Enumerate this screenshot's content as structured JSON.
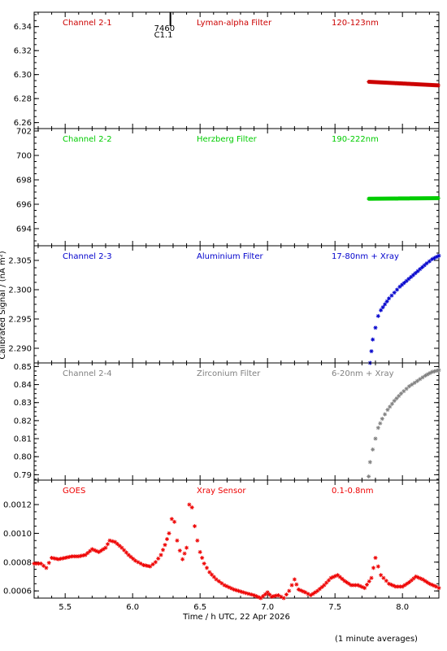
{
  "xaxis": {
    "label": "Time / h UTC, 22 Apr 2026",
    "ticks": [
      5.5,
      6.0,
      6.5,
      7.0,
      7.5,
      8.0
    ],
    "range": [
      5.27,
      8.27
    ]
  },
  "ylabel": "Calibrated Signal / (nA m²)",
  "note": "(1 minute averages)",
  "marker": {
    "time": 6.28,
    "labels": [
      "7460",
      "C1.1"
    ]
  },
  "chart_data": [
    {
      "type": "scatter",
      "channel": "Channel 2-1",
      "filter": "Lyman-alpha Filter",
      "band": "120-123nm",
      "color": "#cc0000",
      "ylim": [
        6.255,
        6.352
      ],
      "yticks": [
        6.26,
        6.28,
        6.3,
        6.32,
        6.34
      ],
      "series": [
        {
          "x_range": [
            7.75,
            8.27
          ],
          "y_start": 6.294,
          "y_end": 6.291
        }
      ]
    },
    {
      "type": "scatter",
      "channel": "Channel 2-2",
      "filter": "Herzberg Filter",
      "band": "190-222nm",
      "color": "#00cc00",
      "ylim": [
        692.6,
        702.2
      ],
      "yticks": [
        694,
        696,
        698,
        700,
        702
      ],
      "series": [
        {
          "x_range": [
            7.75,
            8.27
          ],
          "y_start": 696.45,
          "y_end": 696.5
        }
      ]
    },
    {
      "type": "scatter",
      "channel": "Channel 2-3",
      "filter": "Aluminium Filter",
      "band": "17-80nm + Xray",
      "color": "#0000cc",
      "ylim": [
        2.2875,
        2.3075
      ],
      "yticks": [
        2.29,
        2.295,
        2.3,
        2.305
      ],
      "series": [
        {
          "points": [
            [
              7.76,
              2.2875
            ],
            [
              7.77,
              2.2895
            ],
            [
              7.78,
              2.2915
            ],
            [
              7.8,
              2.2935
            ],
            [
              7.82,
              2.2955
            ],
            [
              7.84,
              2.2965
            ],
            [
              7.87,
              2.2975
            ],
            [
              7.9,
              2.2985
            ],
            [
              7.94,
              2.2995
            ],
            [
              7.98,
              2.3005
            ],
            [
              8.03,
              2.3015
            ],
            [
              8.08,
              2.3025
            ],
            [
              8.13,
              2.3035
            ],
            [
              8.18,
              2.3045
            ],
            [
              8.22,
              2.3052
            ],
            [
              8.27,
              2.3058
            ]
          ]
        }
      ]
    },
    {
      "type": "scatter",
      "channel": "Channel 2-4",
      "filter": "Zirconium Filter",
      "band": "6-20nm + Xray",
      "color": "#808080",
      "ylim": [
        0.787,
        0.852
      ],
      "yticks": [
        0.79,
        0.8,
        0.81,
        0.82,
        0.83,
        0.84,
        0.85
      ],
      "series": [
        {
          "points": [
            [
              7.75,
              0.789
            ],
            [
              7.76,
              0.797
            ],
            [
              7.78,
              0.804
            ],
            [
              7.8,
              0.81
            ],
            [
              7.82,
              0.816
            ],
            [
              7.85,
              0.821
            ],
            [
              7.89,
              0.826
            ],
            [
              7.94,
              0.831
            ],
            [
              7.99,
              0.835
            ],
            [
              8.05,
              0.839
            ],
            [
              8.11,
              0.842
            ],
            [
              8.17,
              0.845
            ],
            [
              8.22,
              0.847
            ],
            [
              8.27,
              0.848
            ]
          ]
        }
      ]
    },
    {
      "type": "scatter",
      "channel": "GOES",
      "filter": "Xray Sensor",
      "band": "0.1-0.8nm",
      "color": "#ee0000",
      "ylim": [
        0.00055,
        0.00137
      ],
      "yticks": [
        0.0006,
        0.0008,
        0.001,
        0.0012
      ],
      "series": [
        {
          "points": [
            [
              5.27,
              0.00079
            ],
            [
              5.32,
              0.00079
            ],
            [
              5.36,
              0.00076
            ],
            [
              5.4,
              0.00083
            ],
            [
              5.45,
              0.00082
            ],
            [
              5.5,
              0.00083
            ],
            [
              5.55,
              0.00084
            ],
            [
              5.6,
              0.00084
            ],
            [
              5.65,
              0.00085
            ],
            [
              5.7,
              0.00089
            ],
            [
              5.75,
              0.00087
            ],
            [
              5.8,
              0.0009
            ],
            [
              5.83,
              0.00095
            ],
            [
              5.87,
              0.00094
            ],
            [
              5.92,
              0.0009
            ],
            [
              5.97,
              0.00085
            ],
            [
              6.02,
              0.00081
            ],
            [
              6.08,
              0.00078
            ],
            [
              6.13,
              0.00077
            ],
            [
              6.17,
              0.0008
            ],
            [
              6.21,
              0.00085
            ],
            [
              6.24,
              0.00092
            ],
            [
              6.27,
              0.001
            ],
            [
              6.29,
              0.0011
            ],
            [
              6.31,
              0.00108
            ],
            [
              6.33,
              0.00095
            ],
            [
              6.35,
              0.00088
            ],
            [
              6.37,
              0.00082
            ],
            [
              6.4,
              0.0009
            ],
            [
              6.42,
              0.0012
            ],
            [
              6.44,
              0.00118
            ],
            [
              6.46,
              0.00105
            ],
            [
              6.48,
              0.00095
            ],
            [
              6.5,
              0.00087
            ],
            [
              6.53,
              0.00079
            ],
            [
              6.57,
              0.00073
            ],
            [
              6.62,
              0.00068
            ],
            [
              6.68,
              0.00064
            ],
            [
              6.75,
              0.00061
            ],
            [
              6.82,
              0.00059
            ],
            [
              6.9,
              0.00057
            ],
            [
              6.95,
              0.00055
            ],
            [
              7.0,
              0.00059
            ],
            [
              7.03,
              0.00056
            ],
            [
              7.08,
              0.00057
            ],
            [
              7.12,
              0.00055
            ],
            [
              7.16,
              0.0006
            ],
            [
              7.2,
              0.00068
            ],
            [
              7.23,
              0.00061
            ],
            [
              7.28,
              0.00059
            ],
            [
              7.32,
              0.00057
            ],
            [
              7.37,
              0.0006
            ],
            [
              7.42,
              0.00064
            ],
            [
              7.47,
              0.00069
            ],
            [
              7.52,
              0.00071
            ],
            [
              7.57,
              0.00067
            ],
            [
              7.62,
              0.00064
            ],
            [
              7.67,
              0.00064
            ],
            [
              7.72,
              0.00062
            ],
            [
              7.77,
              0.00069
            ],
            [
              7.8,
              0.00083
            ],
            [
              7.84,
              0.00071
            ],
            [
              7.9,
              0.00065
            ],
            [
              7.95,
              0.00063
            ],
            [
              8.0,
              0.00063
            ],
            [
              8.05,
              0.00066
            ],
            [
              8.1,
              0.0007
            ],
            [
              8.15,
              0.00068
            ],
            [
              8.2,
              0.00065
            ],
            [
              8.25,
              0.00063
            ],
            [
              8.27,
              0.00062
            ]
          ]
        }
      ]
    }
  ]
}
